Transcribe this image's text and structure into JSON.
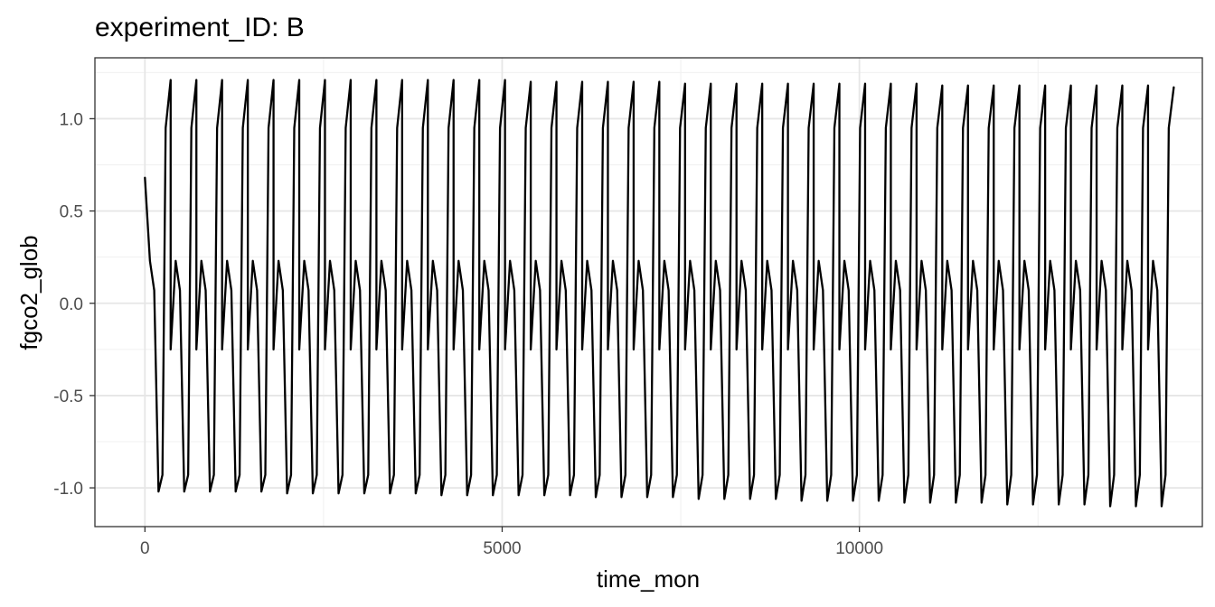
{
  "chart_data": {
    "type": "line",
    "title": "experiment_ID: B",
    "xlabel": "time_mon",
    "ylabel": "fgco2_glob",
    "xlim": [
      -700,
      14800
    ],
    "ylim": [
      -1.21,
      1.33
    ],
    "x_ticks": [
      0,
      5000,
      10000
    ],
    "x_tick_labels": [
      "0",
      "5000",
      "10000"
    ],
    "x_minor_ticks": [
      2500,
      7500,
      12500
    ],
    "y_ticks": [
      -1.0,
      -0.5,
      0.0,
      0.5,
      1.0
    ],
    "y_tick_labels": [
      "-1.0",
      "-0.5",
      "0.0",
      "0.5",
      "1.0"
    ],
    "y_minor_ticks": [
      -0.75,
      -0.25,
      0.25,
      0.75,
      1.25
    ],
    "grid": true,
    "legend": "none",
    "line_color": "#000000",
    "series": [
      {
        "cycle_period": 360,
        "cycle_count": 40,
        "x_start": 0,
        "y_start": 0.68,
        "cycle_offsets_x": [
          0,
          70,
          130,
          190,
          245,
          290,
          360
        ],
        "cycle_values_y": [
          -0.25,
          0.23,
          0.07,
          -1.02,
          -0.93,
          0.95,
          1.21
        ],
        "final_x": 14400,
        "final_y": 1.17,
        "peak_values": [
          1.21,
          1.21,
          1.21,
          1.21,
          1.21,
          1.21,
          1.21,
          1.21,
          1.21,
          1.21,
          1.21,
          1.21,
          1.21,
          1.21,
          1.2,
          1.2,
          1.2,
          1.2,
          1.2,
          1.2,
          1.19,
          1.19,
          1.19,
          1.19,
          1.19,
          1.19,
          1.19,
          1.19,
          1.19,
          1.19,
          1.18,
          1.18,
          1.18,
          1.18,
          1.18,
          1.18,
          1.18,
          1.18,
          1.18,
          1.17
        ],
        "trough_values": [
          -1.02,
          -1.02,
          -1.02,
          -1.02,
          -1.02,
          -1.03,
          -1.03,
          -1.03,
          -1.03,
          -1.03,
          -1.03,
          -1.04,
          -1.04,
          -1.04,
          -1.04,
          -1.04,
          -1.04,
          -1.05,
          -1.05,
          -1.05,
          -1.05,
          -1.06,
          -1.06,
          -1.06,
          -1.06,
          -1.07,
          -1.07,
          -1.07,
          -1.07,
          -1.08,
          -1.08,
          -1.08,
          -1.08,
          -1.09,
          -1.09,
          -1.09,
          -1.09,
          -1.1,
          -1.1,
          -1.1
        ]
      }
    ]
  }
}
